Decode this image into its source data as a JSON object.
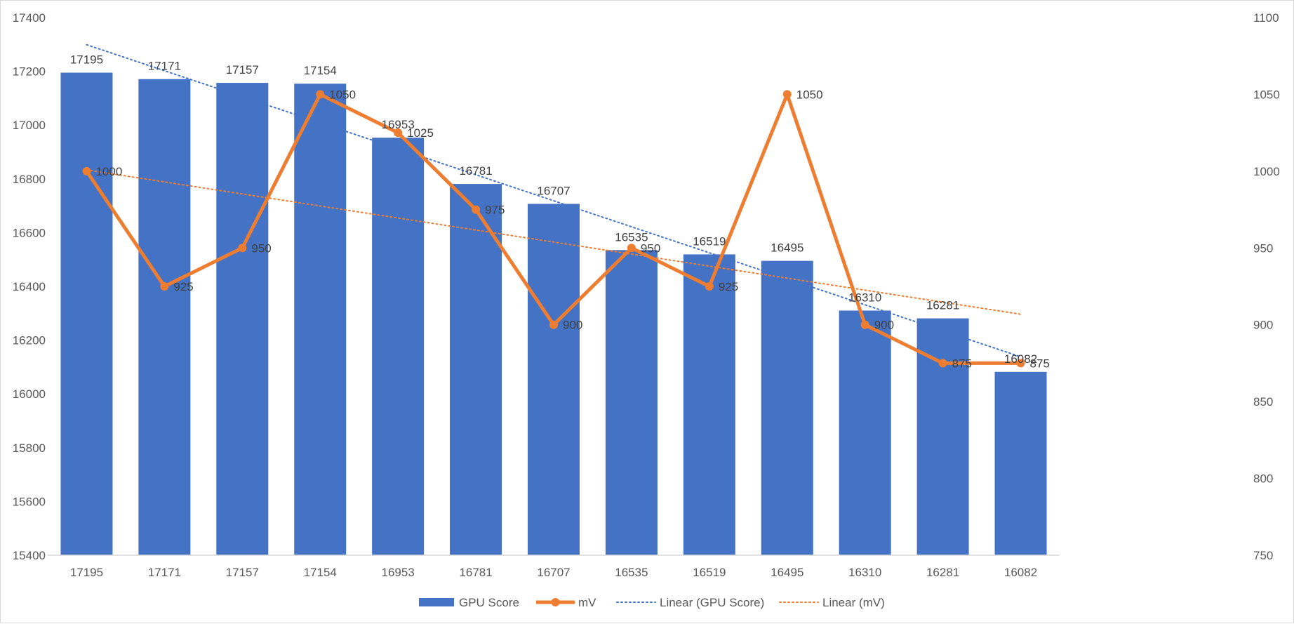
{
  "chart_data": {
    "type": "bar",
    "categories": [
      "17195",
      "17171",
      "17157",
      "17154",
      "16953",
      "16781",
      "16707",
      "16535",
      "16519",
      "16495",
      "16310",
      "16281",
      "16082"
    ],
    "series": [
      {
        "name": "GPU Score",
        "type": "bar",
        "axis": "left",
        "color": "#4472C4",
        "values": [
          17195,
          17171,
          17157,
          17154,
          16953,
          16781,
          16707,
          16535,
          16519,
          16495,
          16310,
          16281,
          16082
        ]
      },
      {
        "name": "mV",
        "type": "line",
        "axis": "right",
        "color": "#ED7D31",
        "marker": "circle",
        "values": [
          1000,
          925,
          950,
          1050,
          1025,
          975,
          900,
          950,
          925,
          1050,
          900,
          875,
          875
        ]
      },
      {
        "name": "Linear (GPU Score)",
        "type": "trendline",
        "of": "GPU Score",
        "axis": "left",
        "color": "#4472C4",
        "dash": "dotted"
      },
      {
        "name": "Linear (mV)",
        "type": "trendline",
        "of": "mV",
        "axis": "right",
        "color": "#ED7D31",
        "dash": "dotted"
      }
    ],
    "ylim_left": [
      15400,
      17400
    ],
    "ylim_right": [
      750,
      1100
    ],
    "yticks_left": [
      "15400",
      "15600",
      "15800",
      "16000",
      "16200",
      "16400",
      "16600",
      "16800",
      "17000",
      "17200",
      "17400"
    ],
    "yticks_right": [
      "750",
      "800",
      "850",
      "900",
      "950",
      "1000",
      "1050",
      "1100"
    ],
    "title": "",
    "xlabel": "",
    "ylabel": "",
    "grid": false,
    "legend_position": "bottom",
    "data_labels": true
  }
}
